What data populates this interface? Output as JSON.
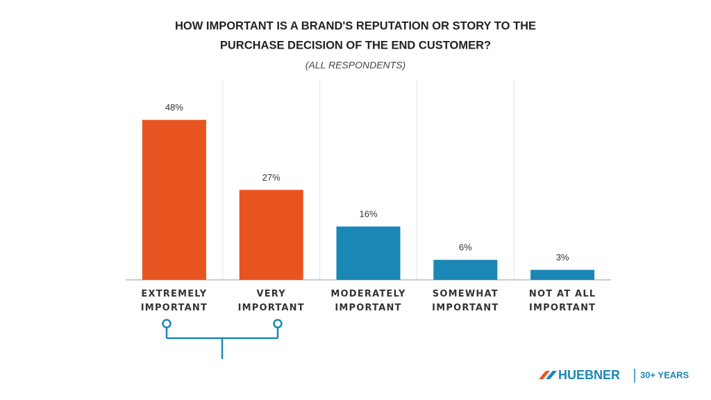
{
  "chart_data": {
    "type": "bar",
    "title": [
      "HOW IMPORTANT IS A BRAND'S REPUTATION OR STORY TO THE",
      "PURCHASE DECISION OF THE END CUSTOMER?"
    ],
    "subtitle": "(ALL RESPONDENTS)",
    "categories": [
      "EXTREMELY IMPORTANT",
      "VERY IMPORTANT",
      "MODERATELY IMPORTANT",
      "SOMEWHAT IMPORTANT",
      "NOT AT ALL IMPORTANT"
    ],
    "values": [
      48,
      27,
      16,
      6,
      3
    ],
    "value_labels": [
      "48%",
      "27%",
      "16%",
      "6%",
      "3%"
    ],
    "colors": [
      "#e8541f",
      "#e8541f",
      "#1a87b5",
      "#1a87b5",
      "#1a87b5"
    ],
    "ylim": [
      0,
      60
    ]
  },
  "logo": {
    "name": "HUEBNER",
    "tagline": "30+ YEARS"
  }
}
